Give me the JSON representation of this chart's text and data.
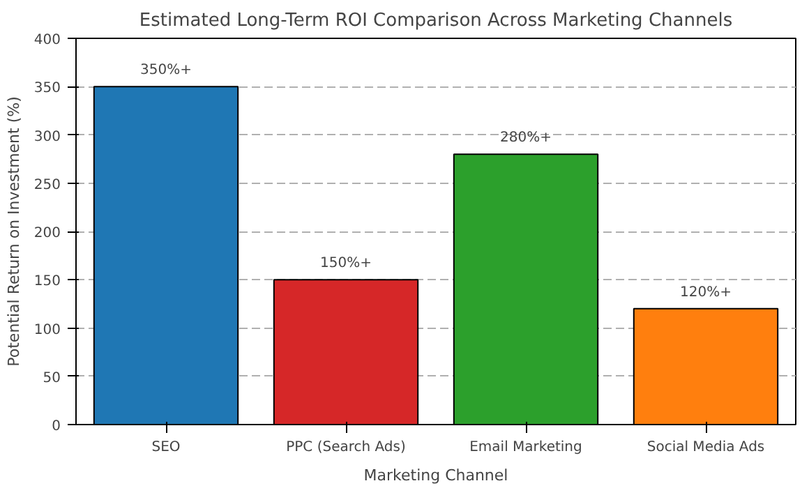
{
  "chart_data": {
    "type": "bar",
    "title": "Estimated Long-Term ROI Comparison Across Marketing Channels",
    "xlabel": "Marketing Channel",
    "ylabel": "Potential Return on Investment (%)",
    "categories": [
      "SEO",
      "PPC (Search Ads)",
      "Email Marketing",
      "Social Media Ads"
    ],
    "values": [
      350,
      150,
      280,
      120
    ],
    "colors": [
      "#1f77b4",
      "#d62728",
      "#2ca02c",
      "#ff7f0e"
    ],
    "value_labels": [
      "350%+",
      "150%+",
      "280%+",
      "120%+"
    ],
    "ylim": [
      0,
      400
    ],
    "yticks": [
      0,
      50,
      100,
      150,
      200,
      250,
      300,
      350,
      400
    ],
    "grid": "y"
  }
}
